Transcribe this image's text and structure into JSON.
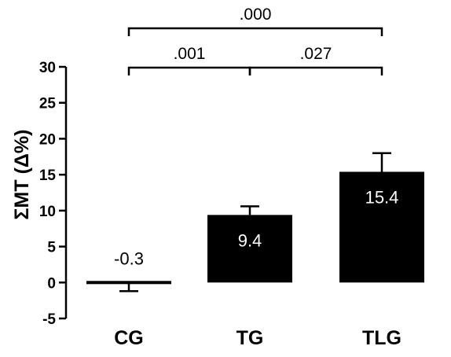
{
  "chart_data": {
    "type": "bar",
    "categories": [
      "CG",
      "TG",
      "TLG"
    ],
    "values": [
      -0.3,
      9.4,
      15.4
    ],
    "errors": [
      0.9,
      1.2,
      2.6
    ],
    "value_labels": [
      "-0.3",
      "9.4",
      "15.4"
    ],
    "ylabel": "ΣMT (Δ%)",
    "ylim": [
      -5,
      30
    ],
    "yticks": [
      -5,
      0,
      5,
      10,
      15,
      20,
      25,
      30
    ],
    "ytick_labels": [
      "-5",
      "0",
      "5",
      "10",
      "15",
      "20",
      "25",
      "30"
    ],
    "bar_color": "#000000",
    "grid": false,
    "significance": [
      {
        "from": 0,
        "to": 1,
        "label": ".001",
        "level": 1
      },
      {
        "from": 1,
        "to": 2,
        "label": ".027",
        "level": 1
      },
      {
        "from": 0,
        "to": 2,
        "label": ".000",
        "level": 2
      }
    ]
  }
}
